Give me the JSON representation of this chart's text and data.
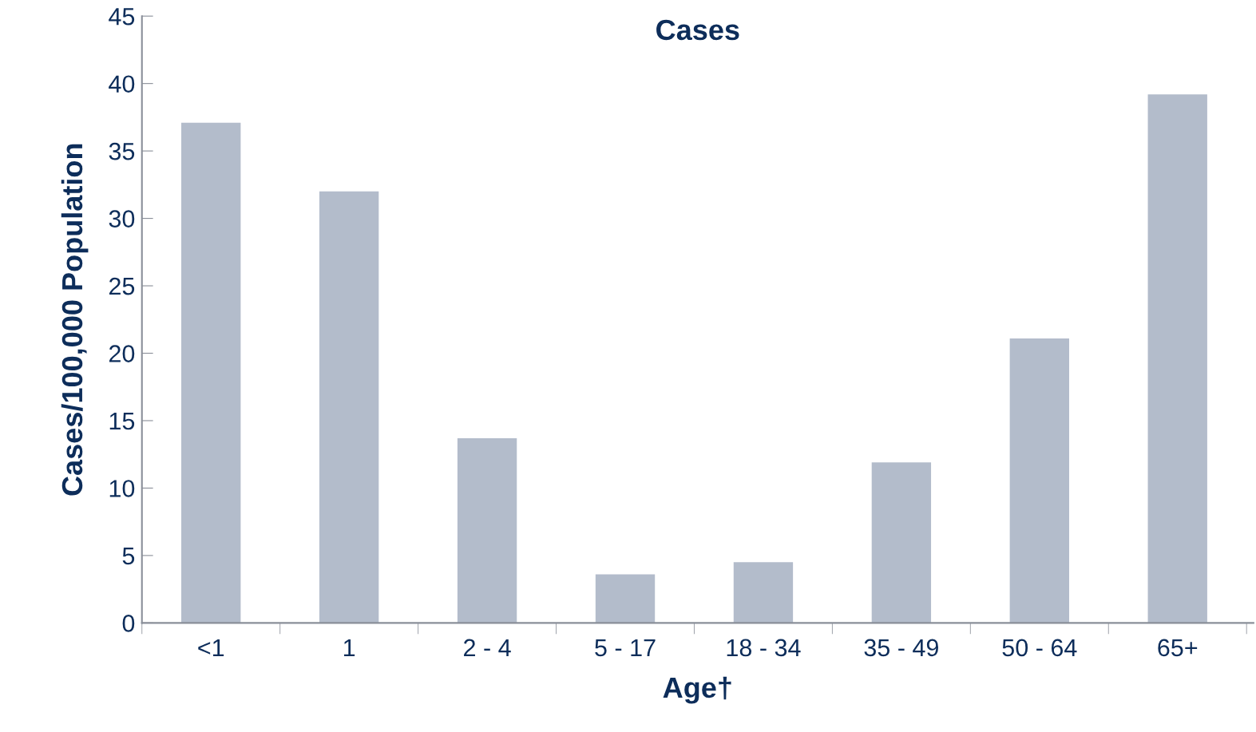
{
  "chart_data": {
    "type": "bar",
    "title": "Cases",
    "xlabel": "Age†",
    "ylabel": "Cases/100,000 Population",
    "categories": [
      "<1",
      "1",
      "2 - 4",
      "5 - 17",
      "18 - 34",
      "35 - 49",
      "50 - 64",
      "65+"
    ],
    "values": [
      37.1,
      32.0,
      13.7,
      3.6,
      4.5,
      11.9,
      21.1,
      39.2
    ],
    "color": "#b3bccb",
    "ylim": [
      0,
      45
    ],
    "yticks": [
      0,
      5,
      10,
      15,
      20,
      25,
      30,
      35,
      40,
      45
    ],
    "grid": false,
    "legend": false
  }
}
